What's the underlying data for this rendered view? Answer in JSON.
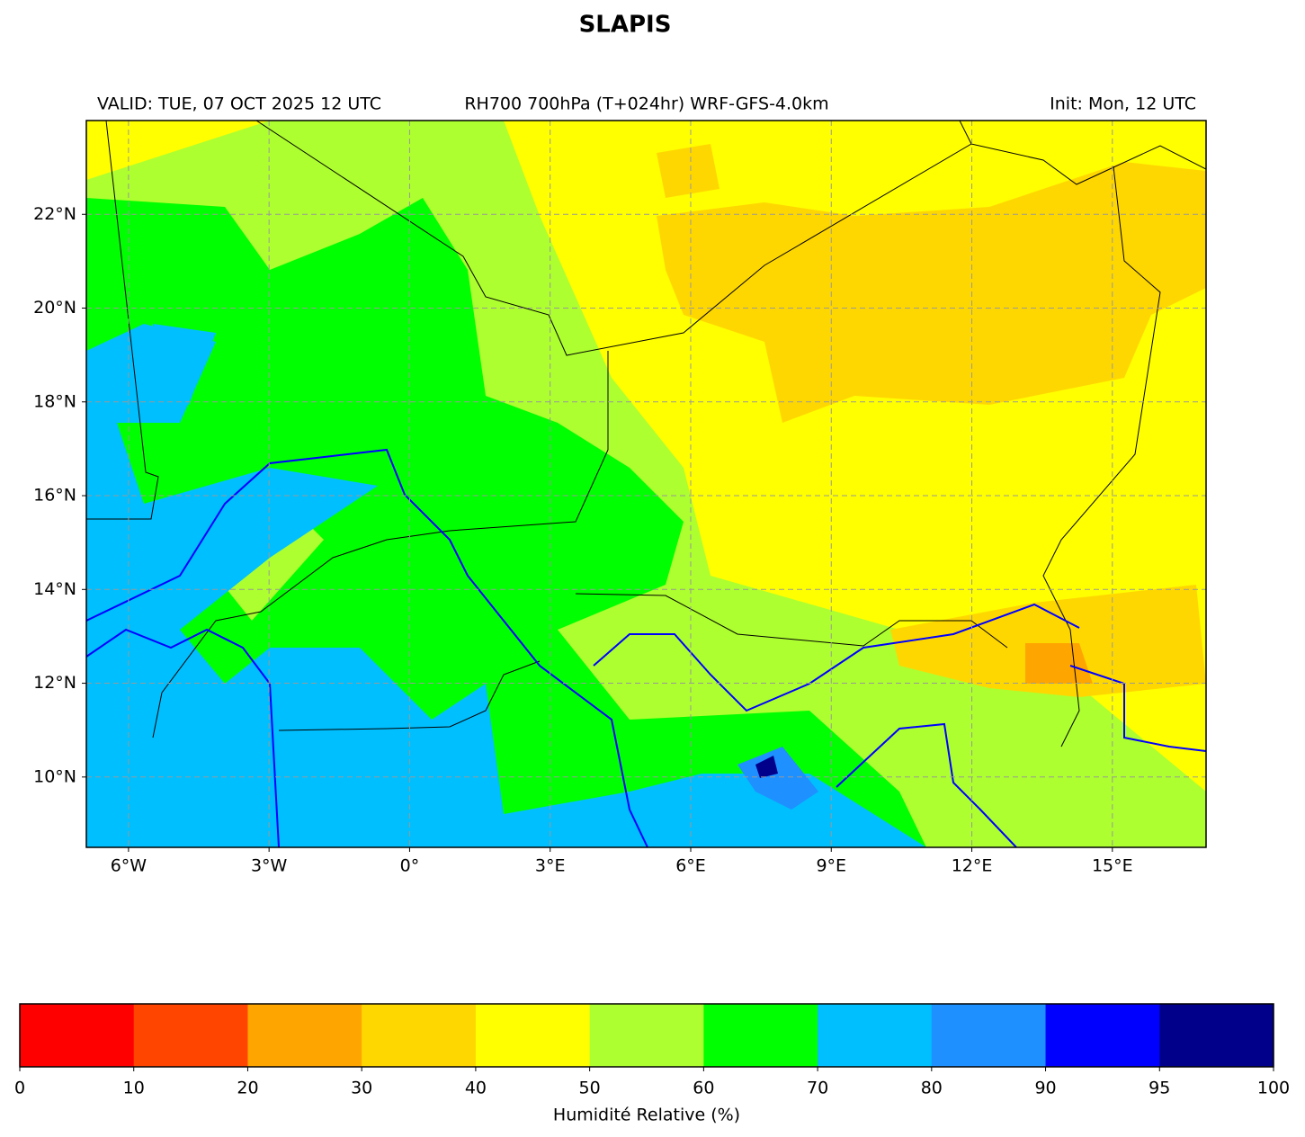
{
  "header": {
    "title": "SLAPIS",
    "valid": "VALID: TUE, 07 OCT 2025 12 UTC",
    "product": "RH700 700hPa (T+024hr) WRF-GFS-4.0km",
    "init": "Init: Mon, 12 UTC"
  },
  "map": {
    "xlim": [
      -6.9,
      17
    ],
    "ylim": [
      8.5,
      24
    ],
    "xticks": [
      {
        "value": -6,
        "label": "6°W"
      },
      {
        "value": -3,
        "label": "3°W"
      },
      {
        "value": 0,
        "label": "0°"
      },
      {
        "value": 3,
        "label": "3°E"
      },
      {
        "value": 6,
        "label": "6°E"
      },
      {
        "value": 9,
        "label": "9°E"
      },
      {
        "value": 12,
        "label": "12°E"
      },
      {
        "value": 15,
        "label": "15°E"
      }
    ],
    "yticks": [
      {
        "value": 10,
        "label": "10°N"
      },
      {
        "value": 12,
        "label": "12°N"
      },
      {
        "value": 14,
        "label": "14°N"
      },
      {
        "value": 16,
        "label": "16°N"
      },
      {
        "value": 18,
        "label": "18°N"
      },
      {
        "value": 20,
        "label": "20°N"
      },
      {
        "value": 22,
        "label": "22°N"
      }
    ],
    "grid": true
  },
  "colorbar": {
    "label": "Humidité Relative (%)",
    "bounds": [
      0,
      10,
      20,
      30,
      40,
      50,
      60,
      70,
      80,
      90,
      95,
      100
    ],
    "colors": [
      "#ff0000",
      "#ff4500",
      "#ffa500",
      "#ffd700",
      "#ffff00",
      "#adff2f",
      "#00ff00",
      "#00bfff",
      "#1e90ff",
      "#0000ff",
      "#00008b"
    ]
  }
}
